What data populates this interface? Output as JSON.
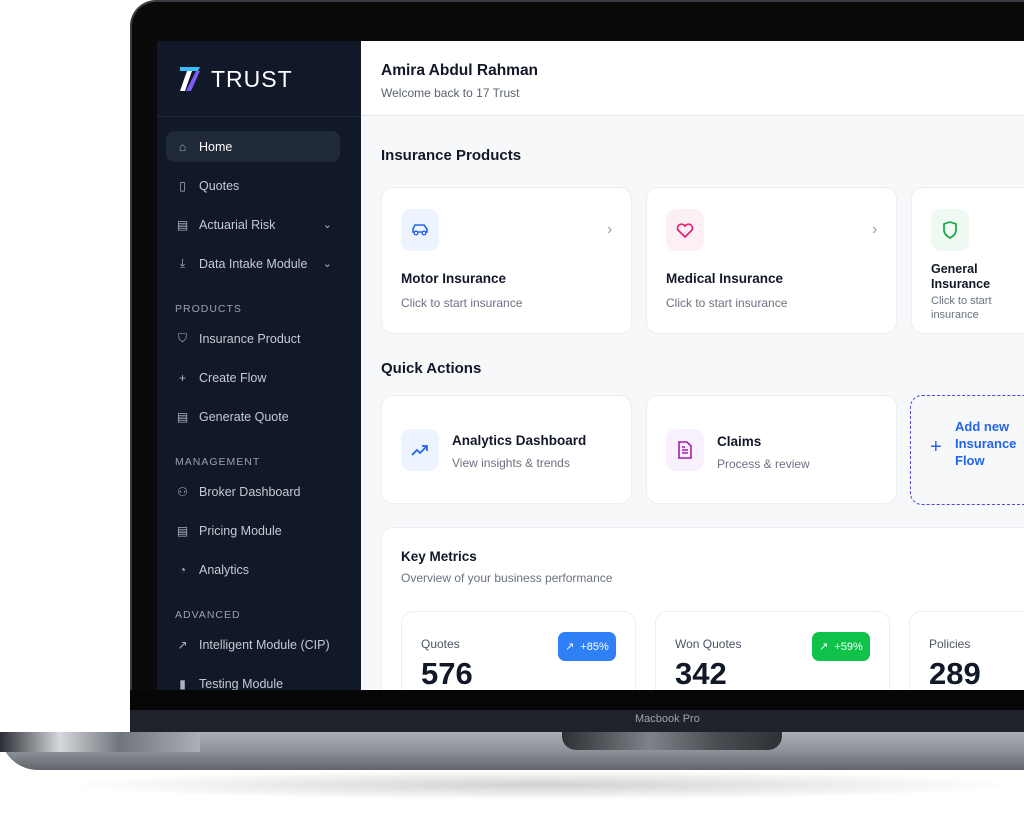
{
  "brand": {
    "name": "TRUST",
    "logo_text": "17"
  },
  "header": {
    "user_name": "Amira Abdul Rahman",
    "welcome": "Welcome back to 17 Trust"
  },
  "sidebar": {
    "items": [
      {
        "label": "Home",
        "icon": "home-icon",
        "active": true
      },
      {
        "label": "Quotes",
        "icon": "file-check-icon"
      },
      {
        "label": "Actuarial Risk",
        "icon": "calculator-icon",
        "expandable": true
      },
      {
        "label": "Data Intake Module",
        "icon": "download-icon",
        "expandable": true
      }
    ],
    "sections": [
      {
        "title": "PRODUCTS",
        "items": [
          {
            "label": "Insurance Product",
            "icon": "shield-icon"
          },
          {
            "label": "Create Flow",
            "icon": "plus-icon"
          },
          {
            "label": "Generate Quote",
            "icon": "file-text-icon"
          }
        ]
      },
      {
        "title": "MANAGEMENT",
        "items": [
          {
            "label": "Broker Dashboard",
            "icon": "users-icon"
          },
          {
            "label": "Pricing Module",
            "icon": "calculator-icon"
          },
          {
            "label": "Analytics",
            "icon": "pie-chart-icon"
          }
        ]
      },
      {
        "title": "ADVANCED",
        "items": [
          {
            "label": "Intelligent Module (CIP)",
            "icon": "trending-up-icon"
          },
          {
            "label": "Testing Module",
            "icon": "test-tube-icon"
          }
        ]
      }
    ]
  },
  "products": {
    "title": "Insurance Products",
    "cards": [
      {
        "title": "Motor Insurance",
        "subtitle": "Click to start insurance",
        "icon": "car-icon",
        "color": "#2563eb",
        "bg": "#eef4ff"
      },
      {
        "title": "Medical Insurance",
        "subtitle": "Click to start insurance",
        "icon": "heart-icon",
        "color": "#e11d74",
        "bg": "#fdf0f5"
      },
      {
        "title": "General Insurance",
        "subtitle": "Click to start insurance",
        "icon": "shield-icon",
        "color": "#16a34a",
        "bg": "#eefaf1"
      }
    ]
  },
  "quick_actions": {
    "title": "Quick Actions",
    "cards": [
      {
        "title": "Analytics Dashboard",
        "subtitle": "View insights & trends",
        "icon": "trending-up-icon"
      },
      {
        "title": "Claims",
        "subtitle": "Process & review",
        "icon": "file-text-icon"
      }
    ],
    "add_label": "Add new Insurance Flow"
  },
  "metrics": {
    "title": "Key Metrics",
    "subtitle": "Overview of your business performance",
    "cards": [
      {
        "label": "Quotes",
        "value": "576",
        "change": "+85%",
        "color": "#2f80f7"
      },
      {
        "label": "Won Quotes",
        "value": "342",
        "change": "+59%",
        "color": "#0fc24a"
      },
      {
        "label": "Policies",
        "value": "289"
      }
    ]
  },
  "device": {
    "label": "Macbook Pro"
  }
}
